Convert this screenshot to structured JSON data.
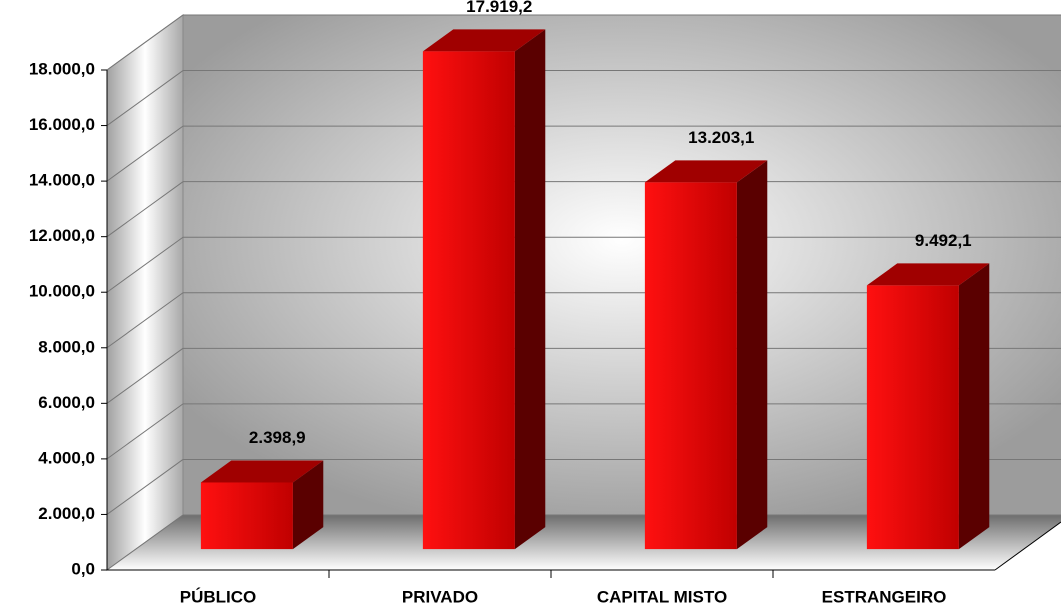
{
  "chart_data": {
    "type": "bar",
    "categories": [
      "PÚBLICO",
      "PRIVADO",
      "CAPITAL MISTO",
      "ESTRANGEIRO"
    ],
    "values": [
      2398.9,
      17919.2,
      13203.1,
      9492.1
    ],
    "value_labels": [
      "2.398,9",
      "17.919,2",
      "13.203,1",
      "9.492,1"
    ],
    "color": "#ff0000",
    "ylim": [
      0,
      18000
    ],
    "yticks": [
      {
        "value": 0,
        "label": "0,0"
      },
      {
        "value": 2000,
        "label": "2.000,0"
      },
      {
        "value": 4000,
        "label": "4.000,0"
      },
      {
        "value": 6000,
        "label": "6.000,0"
      },
      {
        "value": 8000,
        "label": "8.000,0"
      },
      {
        "value": 10000,
        "label": "10.000,0"
      },
      {
        "value": 12000,
        "label": "12.000,0"
      },
      {
        "value": 14000,
        "label": "14.000,0"
      },
      {
        "value": 16000,
        "label": "16.000,0"
      },
      {
        "value": 18000,
        "label": "18.000,0"
      }
    ],
    "grid": true
  }
}
